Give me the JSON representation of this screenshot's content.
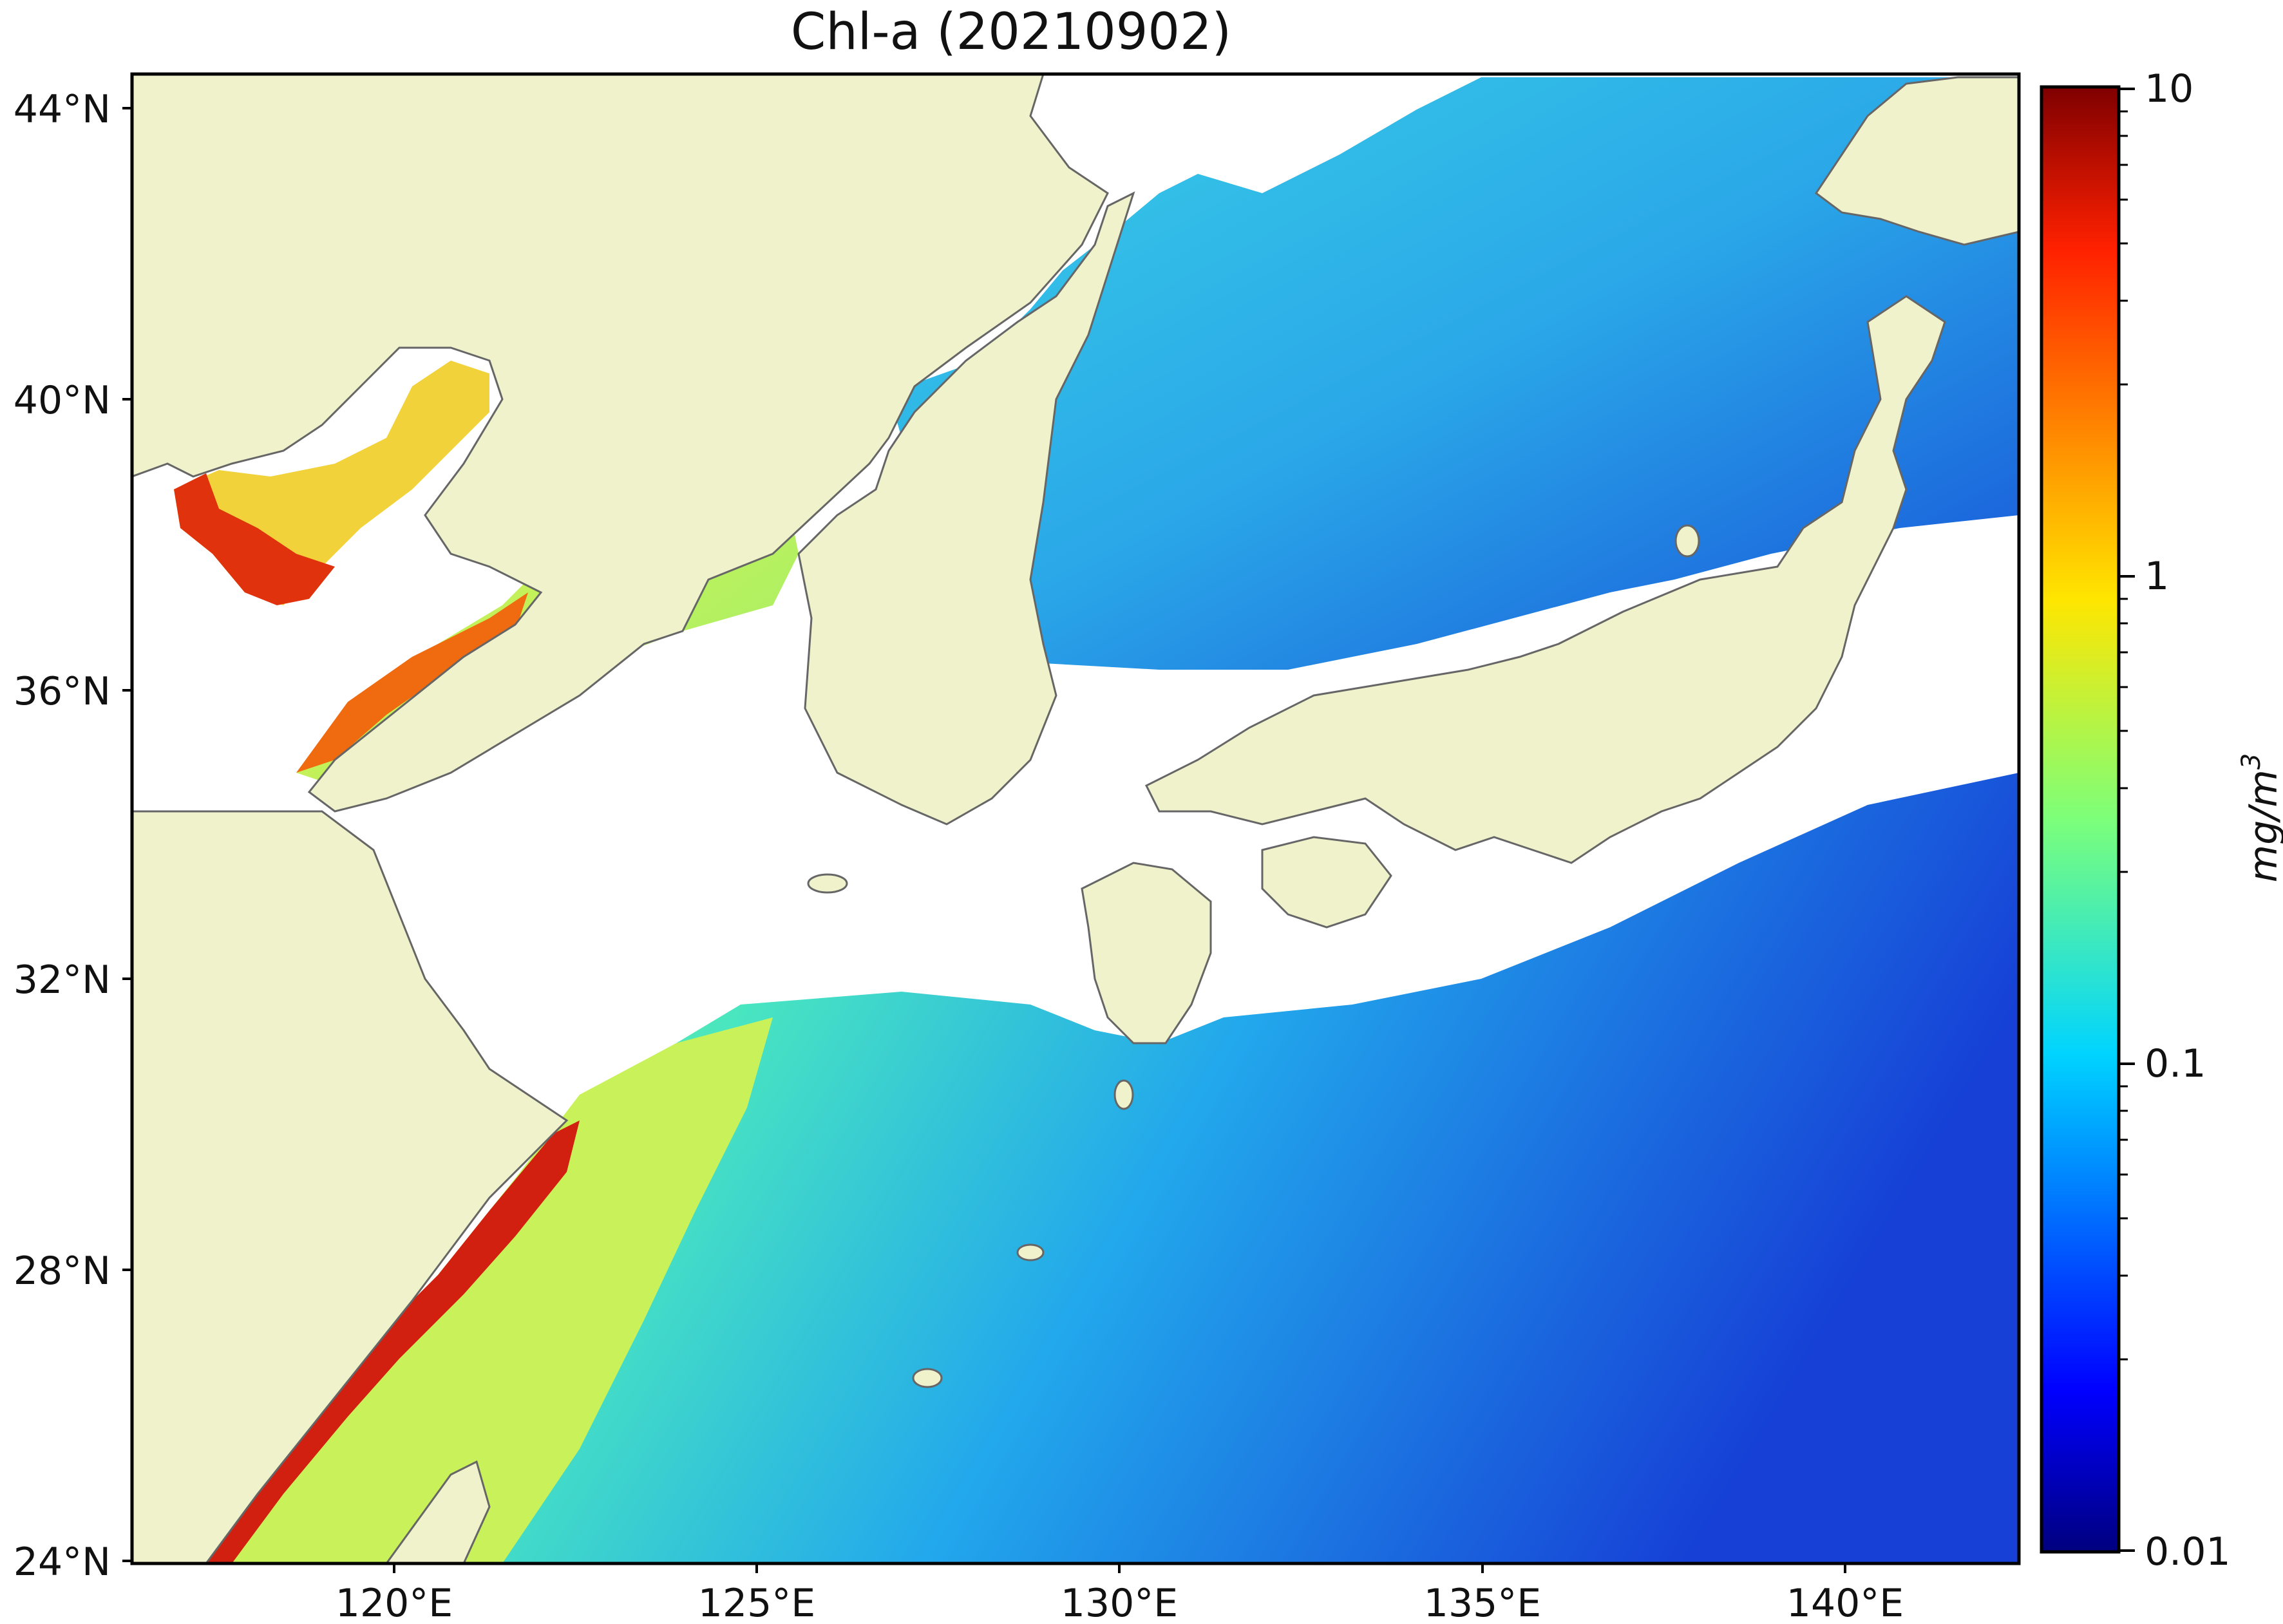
{
  "title": "Chl-a (20210902)",
  "map": {
    "lat_labels": [
      "44°N",
      "40°N",
      "36°N",
      "32°N",
      "28°N",
      "24°N"
    ],
    "lon_labels": [
      "120°E",
      "125°E",
      "130°E",
      "135°E",
      "140°E"
    ],
    "land_color": "#f0f2cc",
    "nodata_color": "#ffffff",
    "coastline_color": "#666666"
  },
  "colorbar": {
    "ticks": [
      "10",
      "1",
      "0.1",
      "0.01"
    ],
    "unit": "mg/m",
    "unit_superscript": "3",
    "scale": "log",
    "range": [
      0.01,
      10
    ],
    "colormap": "jet"
  }
}
